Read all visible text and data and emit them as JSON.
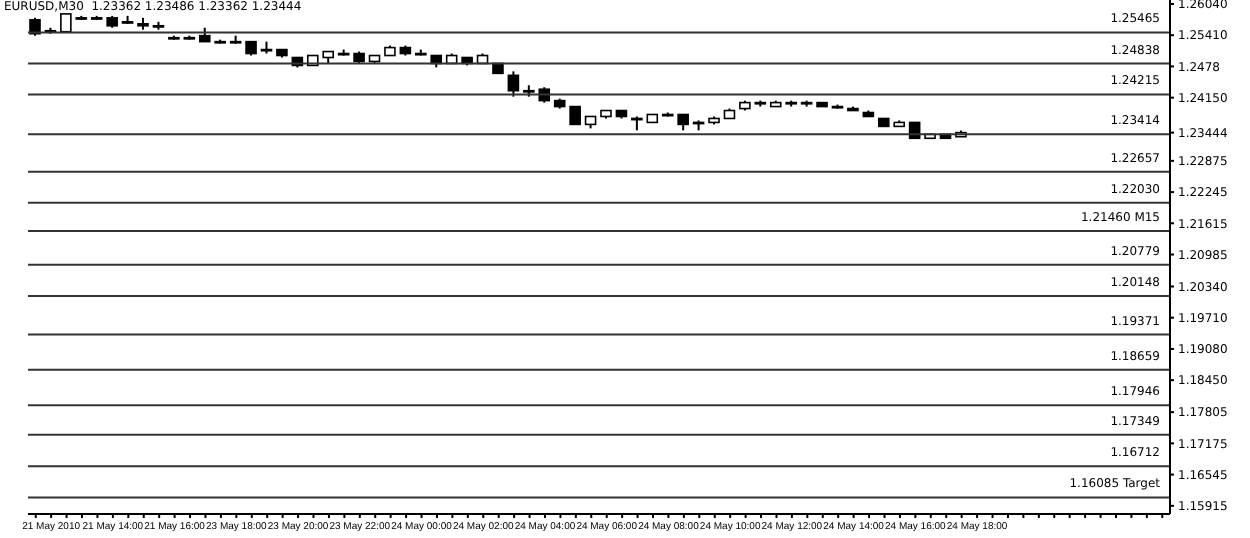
{
  "chart_data": {
    "type": "candlestick",
    "title": "EURUSD,M30  1.23362 1.23486 1.23362 1.23444",
    "color": "#000000",
    "categories": [
      null,
      "21 May 2010",
      null,
      null,
      null,
      "21 May 14:00",
      null,
      null,
      null,
      "21 May 16:00",
      null,
      null,
      null,
      "23 May 18:00",
      null,
      null,
      null,
      "23 May 20:00",
      null,
      null,
      null,
      "23 May 22:00",
      null,
      null,
      null,
      "24 May 00:00",
      null,
      null,
      null,
      "24 May 02:00",
      null,
      null,
      null,
      "24 May 04:00",
      null,
      null,
      null,
      "24 May 06:00",
      null,
      null,
      null,
      "24 May 08:00",
      null,
      null,
      null,
      "24 May 10:00",
      null,
      null,
      null,
      "24 May 12:00",
      null,
      null,
      null,
      "24 May 14:00",
      null,
      null,
      null,
      "24 May 16:00",
      null,
      null,
      null,
      "24 May 18:00",
      null,
      null,
      null,
      null,
      null,
      null,
      null,
      null,
      null,
      null,
      null,
      null
    ],
    "ohlc": [
      [
        1.2572,
        1.2576,
        1.254,
        1.2544
      ],
      [
        1.255,
        1.2556,
        1.2544,
        1.255
      ],
      [
        1.2548,
        1.2584,
        1.2548,
        1.2584
      ],
      [
        1.2576,
        1.258,
        1.2572,
        1.2576
      ],
      [
        1.2576,
        1.258,
        1.2572,
        1.2576
      ],
      [
        1.2576,
        1.258,
        1.2556,
        1.256
      ],
      [
        1.2568,
        1.258,
        1.2564,
        1.2568
      ],
      [
        1.2564,
        1.2576,
        1.2552,
        1.256
      ],
      [
        1.256,
        1.2568,
        1.2552,
        1.256
      ],
      [
        1.2536,
        1.254,
        1.2532,
        1.2536
      ],
      [
        1.2536,
        1.254,
        1.2532,
        1.2536
      ],
      [
        1.254,
        1.2556,
        1.2528,
        1.2528
      ],
      [
        1.2528,
        1.2532,
        1.2524,
        1.2528
      ],
      [
        1.2528,
        1.254,
        1.2524,
        1.2528
      ],
      [
        1.2528,
        1.2528,
        1.25,
        1.2504
      ],
      [
        1.2512,
        1.2528,
        1.2504,
        1.2512
      ],
      [
        1.2512,
        1.2512,
        1.2496,
        1.25
      ],
      [
        1.2496,
        1.2496,
        1.2476,
        1.248
      ],
      [
        1.248,
        1.25,
        1.248,
        1.25
      ],
      [
        1.2496,
        1.2508,
        1.2484,
        1.2508
      ],
      [
        1.2504,
        1.2512,
        1.25,
        1.2504
      ],
      [
        1.2504,
        1.2508,
        1.2484,
        1.2488
      ],
      [
        1.2488,
        1.25,
        1.2484,
        1.25
      ],
      [
        1.25,
        1.252,
        1.25,
        1.2516
      ],
      [
        1.2516,
        1.252,
        1.25,
        1.2504
      ],
      [
        1.2504,
        1.2512,
        1.25,
        1.2504
      ],
      [
        1.25,
        1.25,
        1.2476,
        1.2484
      ],
      [
        1.2484,
        1.2504,
        1.2484,
        1.25
      ],
      [
        1.2496,
        1.2496,
        1.248,
        1.2484
      ],
      [
        1.2484,
        1.2504,
        1.2484,
        1.25
      ],
      [
        1.2484,
        1.2484,
        1.2464,
        1.2464
      ],
      [
        1.246,
        1.2468,
        1.2417,
        1.2429
      ],
      [
        1.2429,
        1.244,
        1.2417,
        1.2429
      ],
      [
        1.2432,
        1.2436,
        1.2405,
        1.2409
      ],
      [
        1.2409,
        1.2413,
        1.2393,
        1.2397
      ],
      [
        1.2397,
        1.2397,
        1.2361,
        1.2361
      ],
      [
        1.2361,
        1.2377,
        1.2353,
        1.2377
      ],
      [
        1.2377,
        1.2389,
        1.2373,
        1.2389
      ],
      [
        1.2389,
        1.2389,
        1.2373,
        1.2377
      ],
      [
        1.2373,
        1.2377,
        1.2349,
        1.2373
      ],
      [
        1.2365,
        1.2381,
        1.2365,
        1.2381
      ],
      [
        1.2381,
        1.2385,
        1.2377,
        1.2381
      ],
      [
        1.2381,
        1.2381,
        1.2349,
        1.2361
      ],
      [
        1.2365,
        1.2369,
        1.2349,
        1.2365
      ],
      [
        1.2365,
        1.2377,
        1.2361,
        1.2373
      ],
      [
        1.2373,
        1.2393,
        1.2373,
        1.2389
      ],
      [
        1.2393,
        1.2409,
        1.2389,
        1.2405
      ],
      [
        1.2405,
        1.2409,
        1.2397,
        1.2405
      ],
      [
        1.2397,
        1.2409,
        1.2397,
        1.2405
      ],
      [
        1.2405,
        1.2409,
        1.2397,
        1.2405
      ],
      [
        1.2405,
        1.2409,
        1.2397,
        1.2405
      ],
      [
        1.2405,
        1.2405,
        1.2397,
        1.2397
      ],
      [
        1.2397,
        1.2401,
        1.2393,
        1.2397
      ],
      [
        1.2393,
        1.2397,
        1.2389,
        1.2389
      ],
      [
        1.2385,
        1.2389,
        1.2377,
        1.2377
      ],
      [
        1.2373,
        1.2373,
        1.2357,
        1.2357
      ],
      [
        1.2357,
        1.2369,
        1.2357,
        1.2365
      ],
      [
        1.2365,
        1.2365,
        1.2333,
        1.2333
      ],
      [
        1.2333,
        1.2341,
        1.2333,
        1.2341
      ],
      [
        1.2341,
        1.2341,
        1.2333,
        1.2333
      ],
      [
        1.23362,
        1.23486,
        1.23362,
        1.23444
      ],
      null,
      null,
      null,
      null,
      null,
      null,
      null,
      null,
      null,
      null,
      null,
      null,
      null
    ],
    "ylim": [
      1.1575,
      1.2612
    ],
    "yticks": [
      {
        "value": 1.2604,
        "label": "1.26040"
      },
      {
        "value": 1.2541,
        "label": "1.25410"
      },
      1.2478,
      {
        "value": 1.2415,
        "label": "1.24150"
      },
      1.23444,
      1.22875,
      1.22245,
      1.21615,
      1.20985,
      {
        "value": 1.2034,
        "label": "1.20340"
      },
      {
        "value": 1.1971,
        "label": "1.19710"
      },
      {
        "value": 1.1908,
        "label": "1.19080"
      },
      {
        "value": 1.1845,
        "label": "1.18450"
      },
      1.17805,
      1.17175,
      1.16545,
      1.15915
    ],
    "ref_lines": [
      {
        "axis": "y",
        "value": 1.25465,
        "label": "1.25465"
      },
      {
        "axis": "y",
        "value": 1.24838,
        "label": "1.24838"
      },
      {
        "axis": "y",
        "value": 1.24215,
        "label": "1.24215"
      },
      {
        "axis": "y",
        "value": 1.23414,
        "label": "1.23414"
      },
      {
        "axis": "y",
        "value": 1.22657,
        "label": "1.22657"
      },
      {
        "axis": "y",
        "value": 1.2203,
        "label": "1.22030"
      },
      {
        "axis": "y",
        "value": 1.2146,
        "label": "1.21460  M15"
      },
      {
        "axis": "y",
        "value": 1.20779,
        "label": "1.20779"
      },
      {
        "axis": "y",
        "value": 1.20148,
        "label": "1.20148"
      },
      {
        "axis": "y",
        "value": 1.19371,
        "label": "1.19371"
      },
      {
        "axis": "y",
        "value": 1.18659,
        "label": "1.18659"
      },
      {
        "axis": "y",
        "value": 1.17946,
        "label": "1.17946"
      },
      {
        "axis": "y",
        "value": 1.17349,
        "label": "1.17349"
      },
      {
        "axis": "y",
        "value": 1.16712,
        "label": "1.16712"
      },
      {
        "axis": "y",
        "value": 1.16085,
        "label": "1.16085  Target"
      }
    ]
  }
}
